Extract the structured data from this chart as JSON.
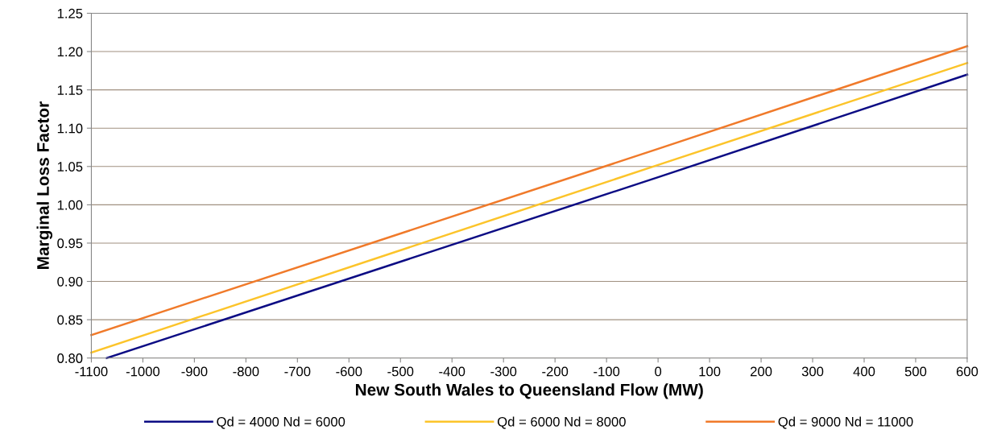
{
  "chart_data": {
    "type": "line",
    "xlabel": "New South Wales to Queensland Flow (MW)",
    "ylabel": "Marginal Loss Factor",
    "x": [
      -1100,
      0,
      600
    ],
    "series": [
      {
        "name": "Qd = 4000 Nd = 6000",
        "color": "#0c0c84",
        "x": [
          -1070,
          0,
          600
        ],
        "values": [
          0.8,
          1.036,
          1.17
        ]
      },
      {
        "name": "Qd = 6000 Nd = 8000",
        "color": "#fcc42a",
        "values": [
          0.807,
          1.052,
          1.185
        ]
      },
      {
        "name": "Qd = 9000 Nd = 11000",
        "color": "#f07a2a",
        "values": [
          0.83,
          1.073,
          1.207
        ]
      }
    ],
    "xlim": [
      -1100,
      600
    ],
    "xticks": [
      -1100,
      -1000,
      -900,
      -800,
      -700,
      -600,
      -500,
      -400,
      -300,
      -200,
      -100,
      0,
      100,
      200,
      300,
      400,
      500,
      600
    ],
    "ylim": [
      0.8,
      1.25
    ],
    "yticks": [
      {
        "value": 0.8,
        "label": "0.80"
      },
      {
        "value": 0.85,
        "label": "0.85"
      },
      {
        "value": 0.9,
        "label": "0.90"
      },
      {
        "value": 0.95,
        "label": "0.95"
      },
      {
        "value": 1.0,
        "label": "1.00"
      },
      {
        "value": 1.05,
        "label": "1.05"
      },
      {
        "value": 1.1,
        "label": "1.10"
      },
      {
        "value": 1.15,
        "label": "1.15"
      },
      {
        "value": 1.2,
        "label": "1.20"
      },
      {
        "value": 1.25,
        "label": "1.25"
      }
    ],
    "grid": "y",
    "legend": "bottom",
    "marker": "none",
    "line_style": "solid"
  }
}
